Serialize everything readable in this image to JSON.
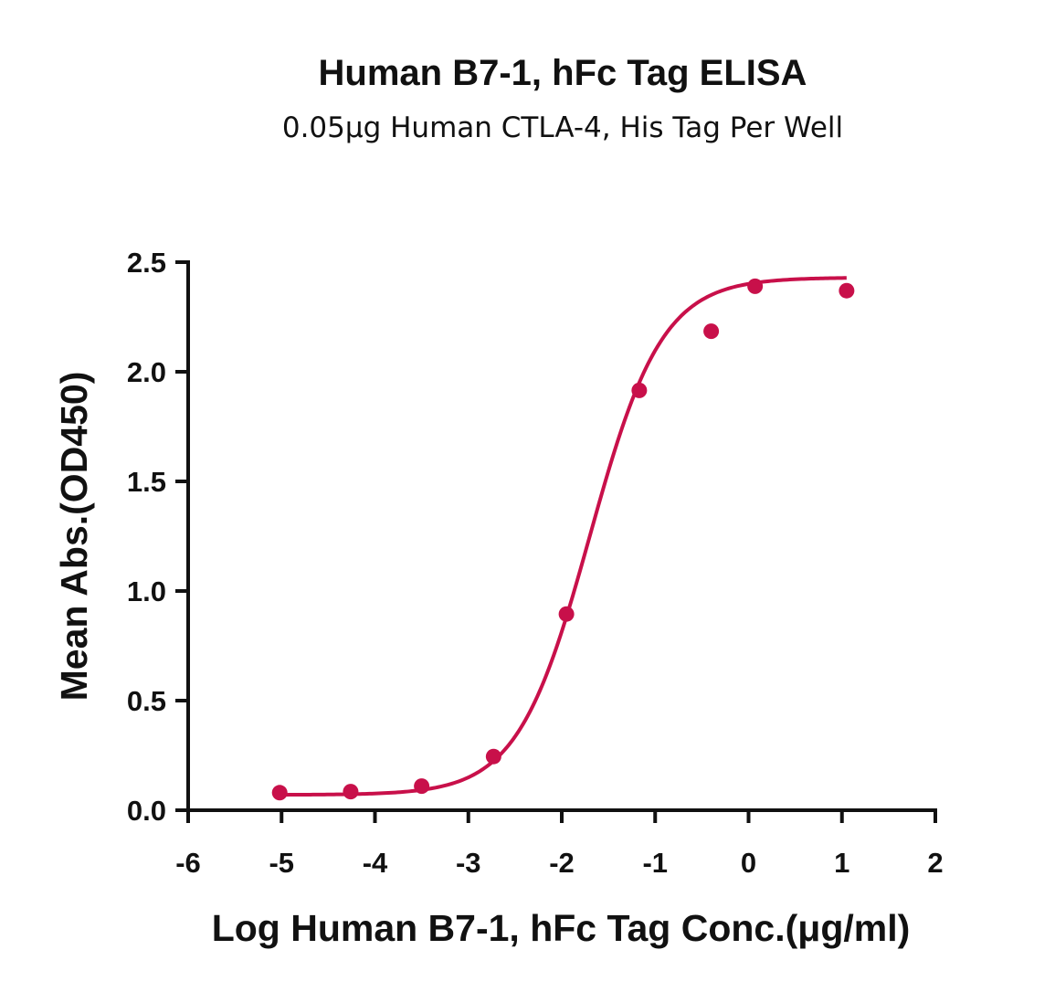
{
  "chart_data": {
    "type": "scatter",
    "title": "Human B7-1, hFc Tag ELISA",
    "subtitle": "0.05μg Human CTLA-4, His Tag Per Well",
    "xlabel": "Log Human B7-1, hFc Tag Conc.(μg/ml)",
    "ylabel": "Mean Abs.(OD450)",
    "xlim": [
      -6,
      2
    ],
    "ylim": [
      0,
      2.5
    ],
    "x_ticks": [
      "-6",
      "-5",
      "-4",
      "-3",
      "-2",
      "-1",
      "0",
      "1",
      "2"
    ],
    "y_ticks": [
      "0.0",
      "0.5",
      "1.0",
      "1.5",
      "2.0",
      "2.5"
    ],
    "color": "#c8104a",
    "grid": false,
    "series": [
      {
        "x": [
          -5.02,
          -4.26,
          -3.5,
          -2.73,
          -1.95,
          -1.17,
          -0.4,
          0.07,
          1.05
        ],
        "values": [
          0.08,
          0.085,
          0.11,
          0.245,
          0.895,
          1.915,
          2.185,
          2.39,
          2.37
        ]
      }
    ],
    "fit_curve": {
      "type": "4PL",
      "bottom": 0.07,
      "top": 2.43,
      "log_ec50": -1.7,
      "hill_slope": 1.12,
      "x_range": [
        -5.02,
        1.05
      ]
    }
  }
}
